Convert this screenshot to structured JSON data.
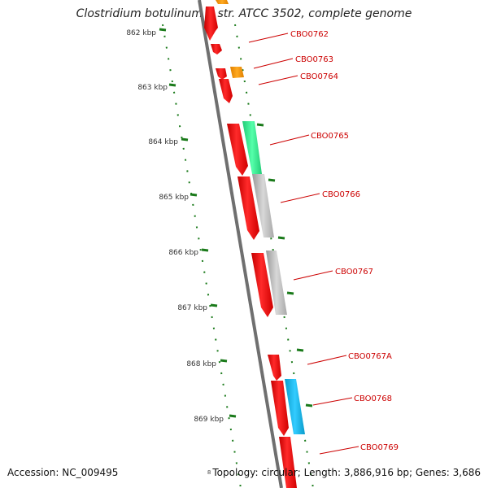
{
  "title": "Clostridium botulinum A str. ATCC 3502, complete genome",
  "footer": {
    "accession": "Accession: NC_009495",
    "topology": "Topology: circular; Length: 3,886,916 bp; Genes: 3,686",
    "tiny_label": "8"
  },
  "colors": {
    "backbone": "#7a7a7a",
    "cds": "#ff1a1a",
    "label": "#cc0000",
    "tick": "#1a7a1a",
    "orange": "#ff9900",
    "green": "#33ee88",
    "gray": "#b8b8b8",
    "cyan": "#11b8ee"
  },
  "ruler": [
    "862 kbp",
    "863 kbp",
    "864 kbp",
    "865 kbp",
    "866 kbp",
    "867 kbp",
    "868 kbp",
    "869 kbp"
  ],
  "genes": [
    "CBO0762",
    "CBO0763",
    "CBO0764",
    "CBO0765",
    "CBO0766",
    "CBO0767",
    "CBO0767A",
    "CBO0768",
    "CBO0769"
  ]
}
